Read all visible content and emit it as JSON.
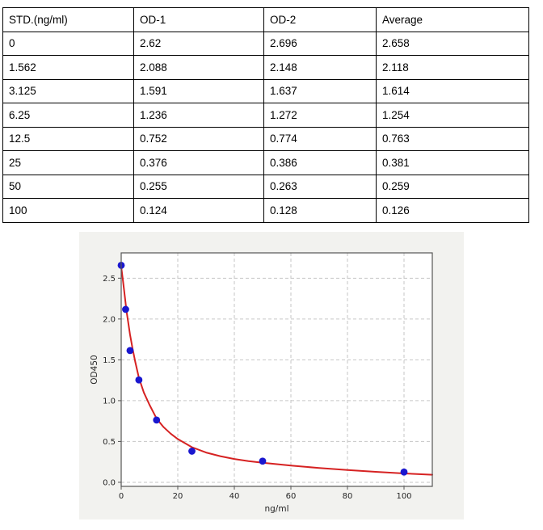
{
  "table": {
    "header": [
      "STD.(ng/ml)",
      "OD-1",
      "OD-2",
      "Average"
    ],
    "rows": [
      [
        "0",
        "2.62",
        "2.696",
        "2.658"
      ],
      [
        "1.562",
        "2.088",
        "2.148",
        "2.118"
      ],
      [
        "3.125",
        "1.591",
        "1.637",
        "1.614"
      ],
      [
        "6.25",
        "1.236",
        "1.272",
        "1.254"
      ],
      [
        "12.5",
        "0.752",
        "0.774",
        "0.763"
      ],
      [
        "25",
        "0.376",
        "0.386",
        "0.381"
      ],
      [
        "50",
        "0.255",
        "0.263",
        "0.259"
      ],
      [
        "100",
        "0.124",
        "0.128",
        "0.126"
      ]
    ]
  },
  "chart_data": {
    "type": "scatter",
    "title": "",
    "xlabel": "ng/ml",
    "ylabel": "OD450",
    "xlim": [
      0,
      110
    ],
    "ylim": [
      -0.05,
      2.81
    ],
    "x_ticks": [
      0,
      20,
      40,
      60,
      80,
      100
    ],
    "y_ticks": [
      "0.0",
      "0.5",
      "1.0",
      "1.5",
      "2.0",
      "2.5"
    ],
    "grid": true,
    "legend": "none",
    "points": {
      "name": "standards",
      "x": [
        0,
        1.562,
        3.125,
        6.25,
        12.5,
        25,
        50,
        100
      ],
      "y": [
        2.658,
        2.118,
        1.614,
        1.254,
        0.763,
        0.381,
        0.259,
        0.126
      ]
    },
    "fit_curve": {
      "name": "4PL-fit",
      "x": [
        0,
        0.5,
        1,
        1.562,
        2,
        2.5,
        3.125,
        4,
        5,
        6.25,
        8,
        10,
        12.5,
        15,
        17.5,
        20,
        25,
        30,
        35,
        40,
        45,
        50,
        60,
        70,
        80,
        90,
        100,
        110
      ],
      "y": [
        2.64,
        2.5,
        2.36,
        2.19,
        2.07,
        1.95,
        1.81,
        1.64,
        1.47,
        1.28,
        1.1,
        0.95,
        0.78,
        0.675,
        0.595,
        0.53,
        0.43,
        0.365,
        0.32,
        0.285,
        0.26,
        0.24,
        0.205,
        0.175,
        0.15,
        0.128,
        0.108,
        0.093
      ]
    },
    "colors": {
      "point": "#1a17cf",
      "curve": "#d62222",
      "figure_bg": "#f2f2ef",
      "plot_bg": "#ffffff",
      "grid": "#c6c6c6",
      "spine": "#555555",
      "tick_text": "#262626"
    }
  }
}
